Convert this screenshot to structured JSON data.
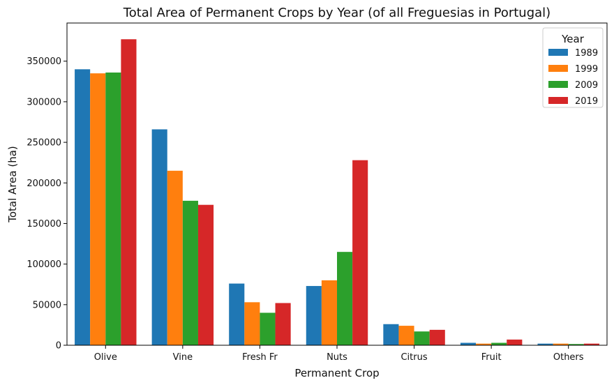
{
  "chart_data": {
    "type": "bar",
    "title": "Total Area of Permanent Crops by Year (of all Freguesias in Portugal)",
    "xlabel": "Permanent Crop",
    "ylabel": "Total Area (ha)",
    "categories": [
      "Olive",
      "Vine",
      "Fresh Fr",
      "Nuts",
      "Citrus",
      "Fruit",
      "Others"
    ],
    "ylim": [
      0,
      397000
    ],
    "yticks": [
      0,
      50000,
      100000,
      150000,
      200000,
      250000,
      300000,
      350000
    ],
    "legend": {
      "title": "Year",
      "placement": "top-right"
    },
    "series": [
      {
        "name": "1989",
        "color": "#1f77b4",
        "values": [
          340000,
          266000,
          76000,
          73000,
          26000,
          3000,
          2000
        ]
      },
      {
        "name": "1999",
        "color": "#ff7f0e",
        "values": [
          335000,
          215000,
          53000,
          80000,
          24000,
          2000,
          2000
        ]
      },
      {
        "name": "2009",
        "color": "#2ca02c",
        "values": [
          336000,
          178000,
          40000,
          115000,
          17000,
          3000,
          1500
        ]
      },
      {
        "name": "2019",
        "color": "#d62728",
        "values": [
          377000,
          173000,
          52000,
          228000,
          19000,
          7000,
          2000
        ]
      }
    ]
  }
}
